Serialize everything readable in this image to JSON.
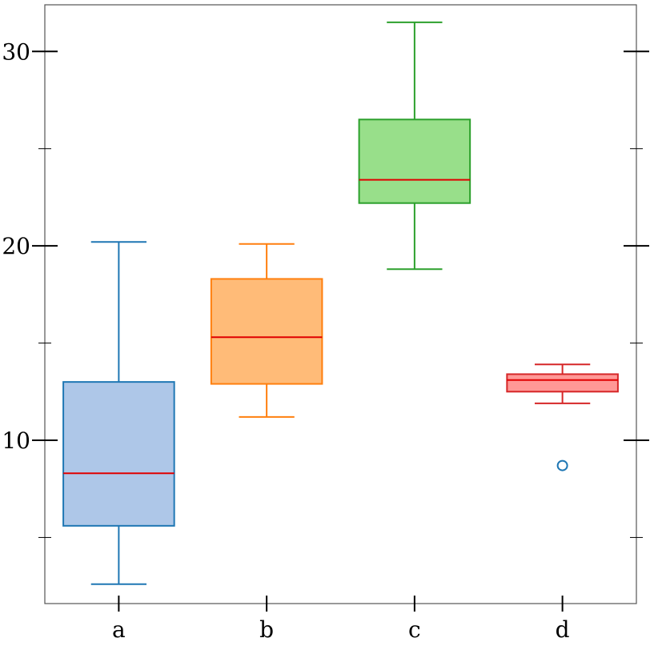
{
  "chart_data": {
    "type": "box",
    "title": "",
    "xlabel": "",
    "ylabel": "",
    "categories": [
      "a",
      "b",
      "c",
      "d"
    ],
    "ylim": [
      1.6,
      32.4
    ],
    "y_major_ticks": [
      10,
      20,
      30
    ],
    "y_minor_ticks": [
      5,
      15,
      25
    ],
    "grid": false,
    "boxes": [
      {
        "category": "a",
        "whisker_low": 2.6,
        "q1": 5.6,
        "median": 8.3,
        "q3": 13.0,
        "whisker_high": 20.2,
        "outliers": [],
        "edge_color": "#1f77b4",
        "fill_color": "#aec7e8"
      },
      {
        "category": "b",
        "whisker_low": 11.2,
        "q1": 12.9,
        "median": 15.3,
        "q3": 18.3,
        "whisker_high": 20.1,
        "outliers": [],
        "edge_color": "#ff7f0e",
        "fill_color": "#ffbb78"
      },
      {
        "category": "c",
        "whisker_low": 18.8,
        "q1": 22.2,
        "median": 23.4,
        "q3": 26.5,
        "whisker_high": 31.5,
        "outliers": [],
        "edge_color": "#2ca02c",
        "fill_color": "#98df8a"
      },
      {
        "category": "d",
        "whisker_low": 11.9,
        "q1": 12.5,
        "median": 13.1,
        "q3": 13.4,
        "whisker_high": 13.9,
        "outliers": [
          8.7
        ],
        "edge_color": "#d62728",
        "fill_color": "#ff9896",
        "outlier_color": "#1f77b4"
      }
    ],
    "median_color": "#e00000"
  }
}
